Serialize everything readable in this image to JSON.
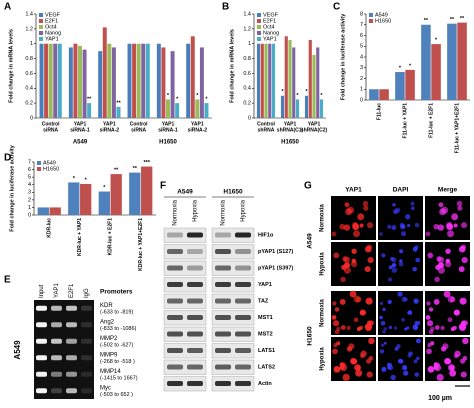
{
  "panel_labels": [
    "A",
    "B",
    "C",
    "D",
    "E",
    "F",
    "G"
  ],
  "chart_data": [
    {
      "type": "bar",
      "ylabel": "Fold change in mRNA levels",
      "legend": "upper-left",
      "categories": [
        [
          "Control",
          "siRNA"
        ],
        [
          "YAP1",
          "siRNA-1"
        ],
        [
          "YAP1",
          "siRNA-2"
        ],
        [
          "Control",
          "siRNA"
        ],
        [
          "YAP1",
          "siRNA-1"
        ],
        [
          "YAP1",
          "siRNA-2"
        ]
      ],
      "groups": [
        "A549",
        "H1650"
      ],
      "ylim": [
        0,
        1.4
      ],
      "yticks": [
        0,
        0.2,
        0.4,
        0.6,
        0.8,
        1,
        1.2,
        1.4
      ],
      "series": [
        {
          "name": "VEGF",
          "color": "#4a7ebb",
          "values": [
            1,
            0.95,
            0.9,
            1,
            1.0,
            1.0
          ],
          "significance": [
            null,
            null,
            null,
            null,
            null,
            null
          ]
        },
        {
          "name": "E2F1",
          "color": "#c0504d",
          "values": [
            1,
            1.0,
            1.22,
            1,
            0.95,
            1.1
          ],
          "significance": [
            null,
            null,
            null,
            null,
            null,
            null
          ]
        },
        {
          "name": "Oct4",
          "color": "#9bbb59",
          "values": [
            1,
            0.97,
            1.0,
            1,
            0.25,
            0.25
          ],
          "significance": [
            null,
            null,
            null,
            null,
            "*",
            "*"
          ]
        },
        {
          "name": "Nanog",
          "color": "#8064a2",
          "values": [
            1,
            0.92,
            0.95,
            1,
            0.9,
            0.95
          ],
          "significance": [
            null,
            null,
            null,
            null,
            null,
            null
          ]
        },
        {
          "name": "YAP1",
          "color": "#4bacc6",
          "values": [
            1,
            0.2,
            0.15,
            1,
            0.2,
            0.2
          ],
          "significance": [
            null,
            "**",
            "**",
            null,
            "*",
            "*"
          ]
        }
      ]
    },
    {
      "type": "bar",
      "ylabel": "Fold change in mRNA levels",
      "legend": "upper-left",
      "categories": [
        [
          "Control",
          "shRNA"
        ],
        [
          "YAP1",
          "shRNA(C1)"
        ],
        [
          "YAP1",
          "shRNA(C2)"
        ]
      ],
      "groups": [
        "H1650"
      ],
      "ylim": [
        0,
        1.4
      ],
      "yticks": [
        0,
        0.2,
        0.4,
        0.6,
        0.8,
        1,
        1.2,
        1.4
      ],
      "series": [
        {
          "name": "VEGF",
          "color": "#4a7ebb",
          "values": [
            1,
            0.3,
            0.3
          ],
          "significance": [
            null,
            "*",
            "*"
          ]
        },
        {
          "name": "E2F1",
          "color": "#c0504d",
          "values": [
            1,
            1.1,
            1.05
          ],
          "significance": [
            null,
            null,
            null
          ]
        },
        {
          "name": "Oct4",
          "color": "#9bbb59",
          "values": [
            1,
            1.05,
            0.85
          ],
          "significance": [
            null,
            null,
            null
          ]
        },
        {
          "name": "Nanog",
          "color": "#8064a2",
          "values": [
            1,
            0.95,
            0.95
          ],
          "significance": [
            null,
            null,
            null
          ]
        },
        {
          "name": "YAP1",
          "color": "#4bacc6",
          "values": [
            1,
            0.25,
            0.25
          ],
          "significance": [
            null,
            "*",
            "*"
          ]
        }
      ]
    },
    {
      "type": "bar",
      "ylabel": "Fold change in luciferase activity",
      "legend": "upper-left",
      "categories": [
        "F11-luc",
        "F11-luc + YAP1",
        "F11-luc + E2F1",
        "F11-luc + YAP1+E2F1"
      ],
      "ylim": [
        0,
        8
      ],
      "yticks": [
        0,
        1,
        2,
        3,
        4,
        5,
        6,
        7,
        8
      ],
      "series": [
        {
          "name": "A549",
          "color": "#4f81bd",
          "values": [
            1,
            2.6,
            7.0,
            7.1
          ],
          "significance": [
            null,
            "*",
            "**",
            "**"
          ]
        },
        {
          "name": "H1650",
          "color": "#c0504d",
          "values": [
            1,
            2.8,
            5.2,
            7.2
          ],
          "significance": [
            null,
            "*",
            "*",
            "**"
          ]
        }
      ]
    },
    {
      "type": "bar",
      "ylabel": "Fold change in luciferase activity",
      "legend": "upper-left",
      "categories": [
        "KDR-luc",
        "KDR-luc + YAP1",
        "KDR-luc + E2F1",
        "KDR-luc + YAP1+E2F1"
      ],
      "ylim": [
        0,
        7
      ],
      "yticks": [
        0,
        1,
        2,
        3,
        4,
        5,
        6,
        7
      ],
      "series": [
        {
          "name": "A549",
          "color": "#4f81bd",
          "values": [
            1,
            4.3,
            3.1,
            5.6
          ],
          "significance": [
            null,
            "*",
            "*",
            "**"
          ]
        },
        {
          "name": "H1650",
          "color": "#c0504d",
          "values": [
            1,
            4.1,
            5.4,
            6.4
          ],
          "significance": [
            null,
            "*",
            "**",
            "***"
          ]
        }
      ]
    }
  ],
  "gel": {
    "columns": [
      "Input",
      "YAP1",
      "E2F1",
      "IgG"
    ],
    "promoters_title": "Promoters",
    "cell_line": "A549",
    "rows": [
      {
        "gene": "KDR",
        "region": "(-633 to -819)"
      },
      {
        "gene": "Ang2",
        "region": "(-833 to -1086)"
      },
      {
        "gene": "MMP2",
        "region": "(-502 to -627)"
      },
      {
        "gene": "MMP9",
        "region": "(-268 to -518 )"
      },
      {
        "gene": "MMP14",
        "region": "(-1415 to 1667)"
      },
      {
        "gene": "Myc",
        "region": "(-503 to 652 )"
      }
    ]
  },
  "western": {
    "cell_lines": [
      "A549",
      "H1650"
    ],
    "conditions": [
      "Normoxia",
      "Hypoxia",
      "Normoxia",
      "Hypoxia"
    ],
    "proteins": [
      "HIF1α",
      "pYAP1 (S127)",
      "pYAP1 (S397)",
      "YAP1",
      "TAZ",
      "MST1",
      "MST2",
      "LATS1",
      "LATS2",
      "Actin"
    ]
  },
  "microscopy": {
    "columns": [
      "YAP1",
      "DAPI",
      "Merge"
    ],
    "cell_lines": [
      "A549",
      "H1650"
    ],
    "conditions": [
      "Normoxia",
      "Hypoxia",
      "Normoxia",
      "Hypoxia"
    ],
    "scale_bar": "100 µm"
  }
}
